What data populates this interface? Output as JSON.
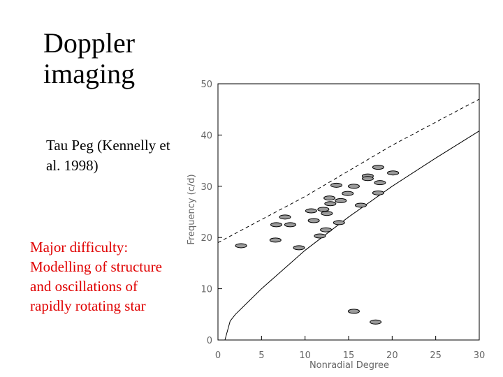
{
  "slide": {
    "title": "Doppler imaging",
    "reference": "Tau Peg (Kennelly et al. 1998)",
    "note": "Major difficulty: Modelling of structure and oscillations of rapidly rotating star"
  },
  "chart_data": {
    "type": "scatter",
    "xlabel": "Nonradial Degree",
    "ylabel": "Frequency (c/d)",
    "xlim": [
      0,
      30
    ],
    "ylim": [
      0,
      50
    ],
    "xticks": [
      0,
      5,
      10,
      15,
      20,
      25,
      30
    ],
    "yticks": [
      0,
      10,
      20,
      30,
      40,
      50
    ],
    "color": "#9a9a9a",
    "x": [
      2.65,
      7.7,
      6.7,
      8.3,
      6.6,
      9.3,
      10.7,
      12.1,
      11.0,
      12.5,
      12.8,
      12.4,
      11.7,
      12.9,
      14.1,
      13.6,
      15.6,
      14.9,
      13.9,
      16.4,
      17.2,
      18.4,
      17.2,
      18.6,
      18.4,
      20.1,
      15.6,
      18.1
    ],
    "values": [
      18.4,
      24.0,
      22.5,
      22.5,
      19.5,
      18.0,
      25.2,
      25.5,
      23.3,
      24.7,
      27.7,
      21.5,
      20.3,
      26.6,
      27.2,
      30.2,
      30.0,
      28.6,
      22.9,
      26.3,
      32.0,
      33.7,
      31.5,
      30.7,
      28.7,
      32.6,
      5.6,
      3.5
    ],
    "lines": [
      {
        "style": "solid",
        "x": [
          0.8,
          1.4,
          2,
          5,
          10,
          15,
          20,
          25,
          30
        ],
        "values": [
          0,
          3.7,
          5,
          10,
          17.5,
          24,
          30,
          35.5,
          40.8
        ]
      },
      {
        "style": "dashed",
        "x": [
          0,
          5,
          10,
          15,
          20,
          25,
          30
        ],
        "values": [
          19,
          23.5,
          28,
          33,
          38,
          42.5,
          47
        ]
      }
    ]
  }
}
